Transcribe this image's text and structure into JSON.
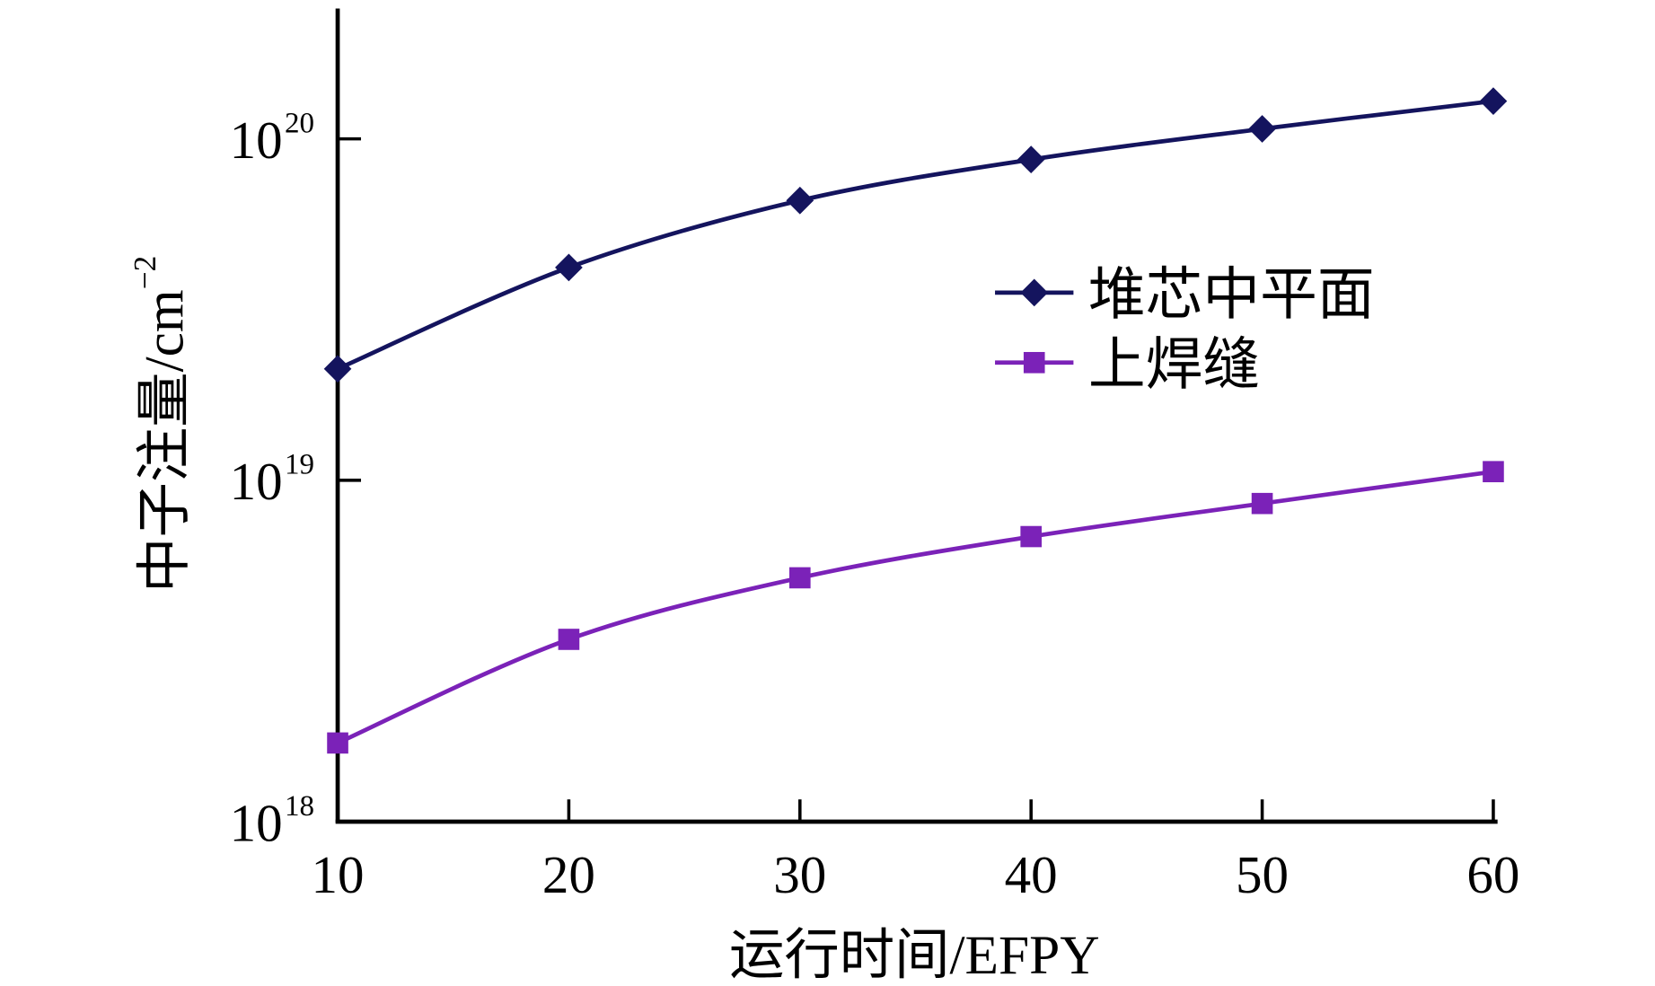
{
  "chart_data": {
    "type": "line",
    "title": "",
    "xlabel": "运行时间/EFPY",
    "ylabel": "中子注量/cm",
    "ylabel_superscript": "−2",
    "x": [
      10,
      20,
      30,
      40,
      50,
      60
    ],
    "xlim": [
      10,
      60
    ],
    "xticks": [
      "10",
      "20",
      "30",
      "40",
      "50",
      "60"
    ],
    "yscale": "log",
    "ylim": [
      1e+18,
      2.3e+20
    ],
    "yticks": [
      {
        "value": 1e+18,
        "base": "10",
        "exp": "18"
      },
      {
        "value": 1e+19,
        "base": "10",
        "exp": "19"
      },
      {
        "value": 1e+20,
        "base": "10",
        "exp": "20"
      }
    ],
    "grid": false,
    "legend_position": "center-right",
    "series": [
      {
        "name": "堆芯中平面",
        "marker": "diamond",
        "color": "#14145e",
        "values": [
          2.12e+19,
          4.2e+19,
          6.6e+19,
          8.7e+19,
          1.07e+20,
          1.29e+20
        ]
      },
      {
        "name": "上焊缝",
        "marker": "square",
        "color": "#7b22b8",
        "values": [
          1.7e+18,
          3.42e+18,
          5.18e+18,
          6.84e+18,
          8.55e+18,
          1.06e+19
        ]
      }
    ]
  }
}
